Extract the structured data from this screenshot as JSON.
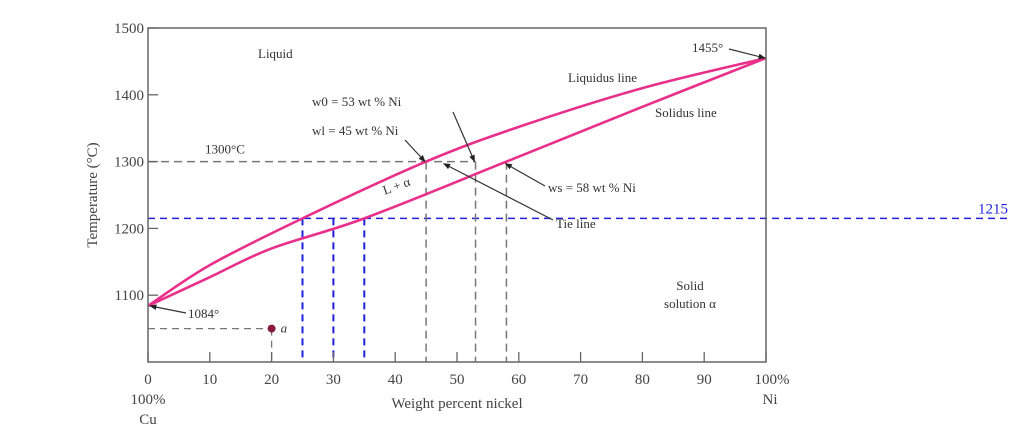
{
  "chart_data": {
    "type": "line",
    "title": "",
    "xlabel": "Weight percent nickel",
    "ylabel": "Temperature (°C)",
    "xlim": [
      0,
      100
    ],
    "ylim": [
      1000,
      1500
    ],
    "x_ticks": [
      0,
      10,
      20,
      30,
      40,
      50,
      60,
      70,
      80,
      90,
      100
    ],
    "x_tick_labels": [
      "0",
      "10",
      "20",
      "30",
      "40",
      "50",
      "60",
      "70",
      "80",
      "90",
      "100%"
    ],
    "x_end_labels": {
      "left": [
        "100%",
        "Cu"
      ],
      "right": [
        "Ni"
      ]
    },
    "y_ticks": [
      1100,
      1200,
      1300,
      1400,
      1500
    ],
    "y_tick_labels": [
      "1100",
      "1200",
      "1300",
      "1400",
      "1500"
    ],
    "grid": false,
    "series": [
      {
        "name": "Liquidus line",
        "color": "#e8308a",
        "x": [
          0,
          10,
          25,
          45,
          60,
          80,
          100
        ],
        "y": [
          1084,
          1145,
          1215,
          1300,
          1352,
          1410,
          1455
        ]
      },
      {
        "name": "Solidus line",
        "color": "#e8308a",
        "x": [
          0,
          10,
          20,
          35,
          58,
          80,
          100
        ],
        "y": [
          1084,
          1127,
          1170,
          1215,
          1300,
          1382,
          1455
        ]
      }
    ],
    "reference_lines": [
      {
        "kind": "horizontal",
        "y": 1300,
        "color": "#777777",
        "label": "1300°C"
      },
      {
        "kind": "horizontal",
        "y": 1215,
        "color": "#2222dd",
        "label": "1215"
      },
      {
        "kind": "vertical",
        "x": 45,
        "from_y": 1300,
        "color": "#777777"
      },
      {
        "kind": "vertical",
        "x": 53,
        "from_y": 1300,
        "color": "#777777"
      },
      {
        "kind": "vertical",
        "x": 58,
        "from_y": 1300,
        "color": "#777777"
      },
      {
        "kind": "vertical",
        "x": 25,
        "from_y": 1215,
        "color": "#2222dd"
      },
      {
        "kind": "vertical",
        "x": 30,
        "from_y": 1215,
        "color": "#2222dd"
      },
      {
        "kind": "vertical",
        "x": 35,
        "from_y": 1215,
        "color": "#2222dd"
      }
    ],
    "point": {
      "label": "a",
      "x": 20,
      "y": 1050,
      "color": "#8b1a3a"
    },
    "region_labels": [
      "Liquid",
      "L + α",
      "Solid",
      "solution α"
    ],
    "annotations": [
      {
        "text": "1455°",
        "x": 100,
        "y": 1455
      },
      {
        "text": "1084°",
        "x": 0,
        "y": 1084
      },
      {
        "text": "w0 = 53 wt % Ni",
        "x": 53,
        "y": 1300
      },
      {
        "text": "wl = 45 wt % Ni",
        "x": 45,
        "y": 1300
      },
      {
        "text": "ws = 58 wt % Ni",
        "x": 58,
        "y": 1300
      },
      {
        "text": "Tie line",
        "x": 48,
        "y": 1300
      },
      {
        "text": "Liquidus line"
      },
      {
        "text": "Solidus line"
      }
    ]
  }
}
